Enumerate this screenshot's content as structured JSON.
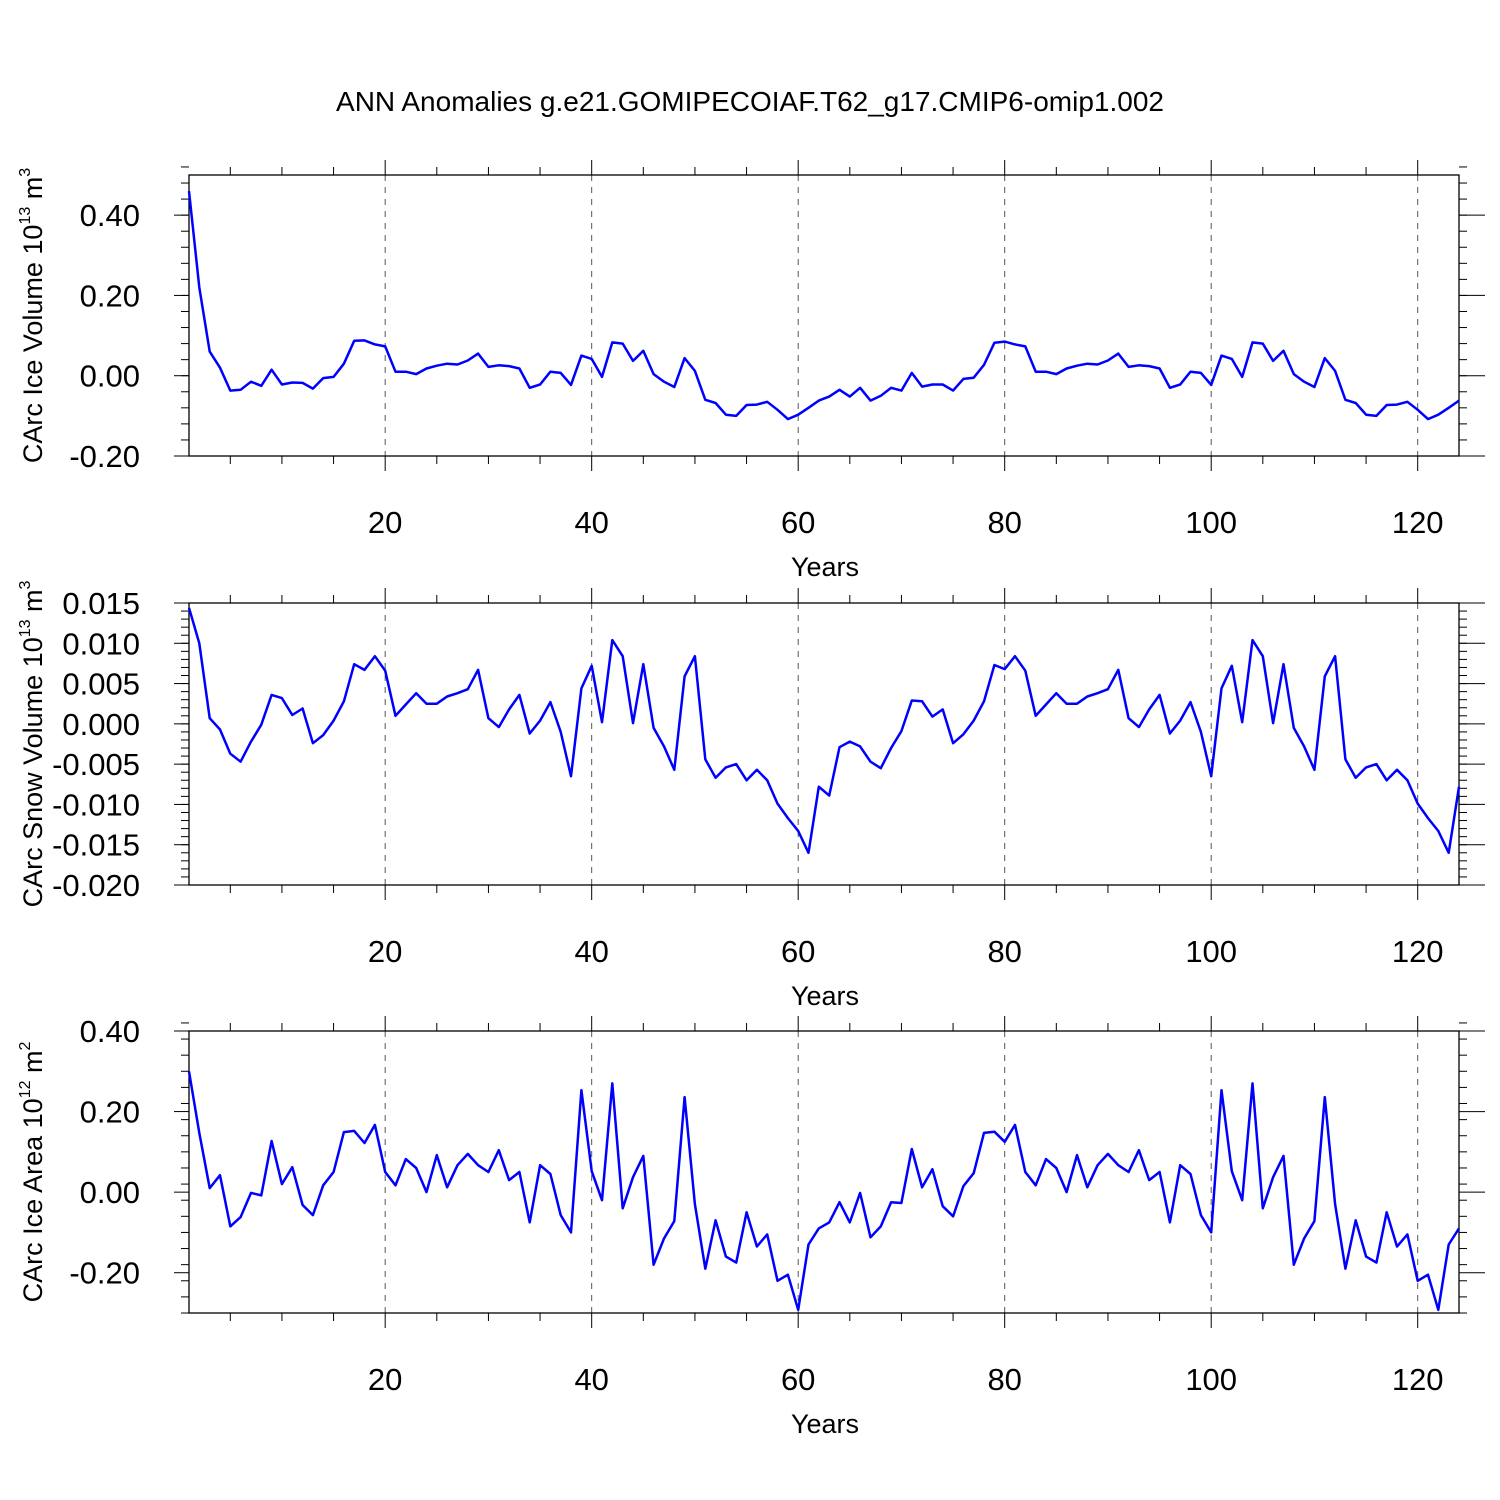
{
  "title": "ANN Anomalies g.e21.GOMIPECOIAF.T62_g17.CMIP6-omip1.002",
  "chart_data": [
    {
      "type": "line",
      "title": "ANN Anomalies g.e21.GOMIPECOIAF.T62_g17.CMIP6-omip1.002",
      "xlabel": "Years",
      "ylabel": {
        "text": "CArc Ice Volume 10",
        "exp": "13",
        "unit": " m",
        "unit_exp": "3"
      },
      "xlim": [
        1,
        124
      ],
      "ylim": [
        -0.2,
        0.5
      ],
      "xticks": [
        20,
        40,
        60,
        80,
        100,
        120
      ],
      "xtick_labels": [
        "20",
        "40",
        "60",
        "80",
        "100",
        "120"
      ],
      "yticks": [
        -0.2,
        0.0,
        0.2,
        0.4
      ],
      "ytick_labels": [
        "-0.20",
        "0.00",
        "0.20",
        "0.40"
      ],
      "yminor": 0.04,
      "grid": "vertical dashed at major x ticks",
      "color": "#0000ff",
      "values": [
        0.46,
        0.22,
        0.06,
        0.02,
        -0.037,
        -0.035,
        -0.015,
        -0.025,
        0.015,
        -0.022,
        -0.017,
        -0.018,
        -0.032,
        -0.006,
        -0.003,
        0.03,
        0.087,
        0.088,
        0.078,
        0.073,
        0.01,
        0.01,
        0.004,
        0.018,
        0.025,
        0.03,
        0.028,
        0.038,
        0.055,
        0.022,
        0.026,
        0.024,
        0.018,
        -0.03,
        -0.022,
        0.01,
        0.007,
        -0.023,
        0.05,
        0.042,
        -0.003,
        0.083,
        0.08,
        0.037,
        0.062,
        0.004,
        -0.015,
        -0.028,
        0.044,
        0.012,
        -0.06,
        -0.068,
        -0.097,
        -0.1,
        -0.073,
        -0.072,
        -0.065,
        -0.085,
        -0.108,
        -0.097,
        -0.08,
        -0.062,
        -0.052,
        -0.035,
        -0.052,
        -0.03,
        -0.062,
        -0.05,
        -0.03,
        -0.037,
        0.007,
        -0.027,
        -0.022,
        -0.022,
        -0.037,
        -0.008,
        -0.005,
        0.027,
        0.082,
        0.085,
        0.078,
        0.073,
        0.01,
        0.01,
        0.004,
        0.018,
        0.025,
        0.03,
        0.028,
        0.038,
        0.055,
        0.022,
        0.026,
        0.024,
        0.018,
        -0.03,
        -0.022,
        0.01,
        0.007,
        -0.023,
        0.05,
        0.042,
        -0.003,
        0.083,
        0.08,
        0.037,
        0.062,
        0.004,
        -0.015,
        -0.028,
        0.044,
        0.012,
        -0.06,
        -0.068,
        -0.097,
        -0.1,
        -0.073,
        -0.072,
        -0.065,
        -0.085,
        -0.108,
        -0.097,
        -0.08,
        -0.062
      ]
    },
    {
      "type": "line",
      "xlabel": "Years",
      "ylabel": {
        "text": "CArc Snow Volume 10",
        "exp": "13",
        "unit": " m",
        "unit_exp": "3"
      },
      "xlim": [
        1,
        124
      ],
      "ylim": [
        -0.02,
        0.015
      ],
      "xticks": [
        20,
        40,
        60,
        80,
        100,
        120
      ],
      "xtick_labels": [
        "20",
        "40",
        "60",
        "80",
        "100",
        "120"
      ],
      "yticks": [
        -0.02,
        -0.015,
        -0.01,
        -0.005,
        0.0,
        0.005,
        0.01,
        0.015
      ],
      "ytick_labels": [
        "-0.020",
        "-0.015",
        "-0.010",
        "-0.005",
        "0.000",
        "0.005",
        "0.010",
        "0.015"
      ],
      "yminor": 0.001,
      "grid": "vertical dashed at major x ticks",
      "color": "#0000ff",
      "values": [
        0.0144,
        0.01,
        0.0007,
        -0.0007,
        -0.0037,
        -0.0047,
        -0.0022,
        -0.0001,
        0.0036,
        0.0032,
        0.0011,
        0.0019,
        -0.0024,
        -0.0014,
        0.0004,
        0.0028,
        0.0074,
        0.0067,
        0.0084,
        0.0066,
        0.001,
        0.0024,
        0.0038,
        0.0025,
        0.0025,
        0.0034,
        0.0038,
        0.0043,
        0.0067,
        0.0007,
        -0.0004,
        0.0018,
        0.0036,
        -0.0012,
        0.0004,
        0.0027,
        -0.001,
        -0.0065,
        0.0044,
        0.0072,
        0.0002,
        0.0104,
        0.0084,
        0.0001,
        0.0074,
        -0.0005,
        -0.0028,
        -0.0057,
        0.0059,
        0.0084,
        -0.0044,
        -0.0067,
        -0.0054,
        -0.005,
        -0.007,
        -0.0057,
        -0.007,
        -0.0099,
        -0.0117,
        -0.0133,
        -0.016,
        -0.0078,
        -0.0089,
        -0.0029,
        -0.0022,
        -0.0028,
        -0.0047,
        -0.0055,
        -0.003,
        -0.0009,
        0.0029,
        0.0028,
        0.0009,
        0.0018,
        -0.0024,
        -0.0013,
        0.0004,
        0.0028,
        0.0073,
        0.0068,
        0.0084,
        0.0066,
        0.001,
        0.0024,
        0.0038,
        0.0025,
        0.0025,
        0.0034,
        0.0038,
        0.0043,
        0.0067,
        0.0007,
        -0.0004,
        0.0018,
        0.0036,
        -0.0012,
        0.0004,
        0.0027,
        -0.001,
        -0.0065,
        0.0044,
        0.0072,
        0.0002,
        0.0104,
        0.0084,
        0.0001,
        0.0074,
        -0.0005,
        -0.0028,
        -0.0057,
        0.0059,
        0.0084,
        -0.0044,
        -0.0067,
        -0.0054,
        -0.005,
        -0.007,
        -0.0057,
        -0.007,
        -0.0099,
        -0.0117,
        -0.0133,
        -0.016,
        -0.0078
      ]
    },
    {
      "type": "line",
      "xlabel": "Years",
      "ylabel": {
        "text": "CArc Ice Area 10",
        "exp": "12",
        "unit": " m",
        "unit_exp": "2"
      },
      "xlim": [
        1,
        124
      ],
      "ylim": [
        -0.3,
        0.4
      ],
      "xticks": [
        20,
        40,
        60,
        80,
        100,
        120
      ],
      "xtick_labels": [
        "20",
        "40",
        "60",
        "80",
        "100",
        "120"
      ],
      "yticks": [
        -0.2,
        0.0,
        0.2,
        0.4
      ],
      "ytick_labels": [
        "-0.20",
        "0.00",
        "0.20",
        "0.40"
      ],
      "yminor": 0.04,
      "grid": "vertical dashed at major x ticks",
      "color": "#0000ff",
      "values": [
        0.3,
        0.147,
        0.01,
        0.042,
        -0.085,
        -0.062,
        -0.002,
        -0.008,
        0.127,
        0.02,
        0.062,
        -0.032,
        -0.057,
        0.017,
        0.05,
        0.149,
        0.152,
        0.122,
        0.167,
        0.05,
        0.017,
        0.082,
        0.06,
        0.0,
        0.092,
        0.012,
        0.067,
        0.095,
        0.067,
        0.05,
        0.104,
        0.03,
        0.05,
        -0.075,
        0.067,
        0.045,
        -0.057,
        -0.1,
        0.253,
        0.052,
        -0.02,
        0.27,
        -0.04,
        0.037,
        0.09,
        -0.18,
        -0.115,
        -0.072,
        0.236,
        -0.03,
        -0.19,
        -0.07,
        -0.16,
        -0.175,
        -0.05,
        -0.135,
        -0.105,
        -0.22,
        -0.205,
        -0.292,
        -0.13,
        -0.09,
        -0.075,
        -0.025,
        -0.075,
        -0.002,
        -0.112,
        -0.085,
        -0.025,
        -0.027,
        0.107,
        0.012,
        0.057,
        -0.035,
        -0.06,
        0.015,
        0.047,
        0.147,
        0.15,
        0.125,
        0.167,
        0.05,
        0.017,
        0.082,
        0.06,
        0.0,
        0.092,
        0.012,
        0.067,
        0.095,
        0.067,
        0.05,
        0.104,
        0.03,
        0.05,
        -0.075,
        0.067,
        0.045,
        -0.057,
        -0.1,
        0.253,
        0.052,
        -0.02,
        0.27,
        -0.04,
        0.037,
        0.09,
        -0.18,
        -0.115,
        -0.072,
        0.236,
        -0.03,
        -0.19,
        -0.07,
        -0.16,
        -0.175,
        -0.05,
        -0.135,
        -0.105,
        -0.22,
        -0.205,
        -0.292,
        -0.13,
        -0.09
      ]
    }
  ]
}
